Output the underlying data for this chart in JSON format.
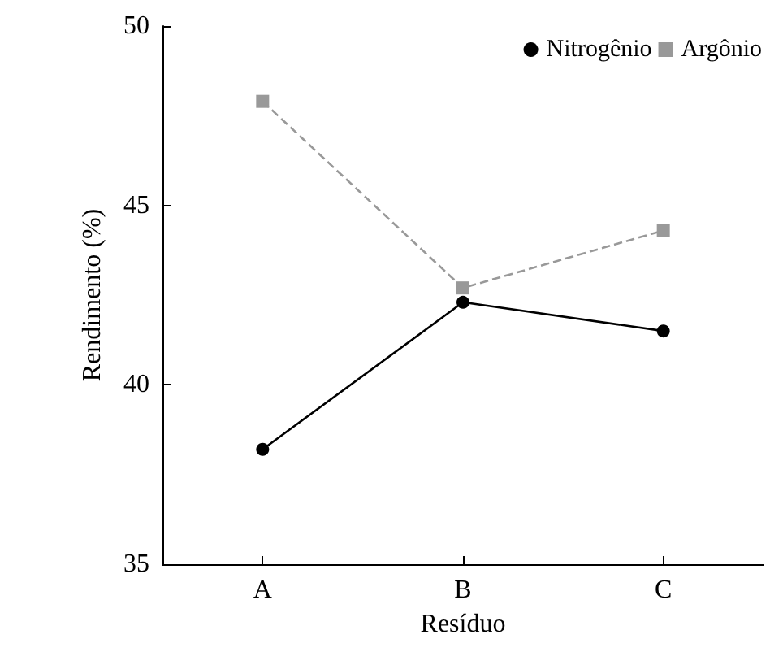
{
  "chart_data": {
    "type": "line",
    "xlabel": "Resíduo",
    "ylabel": "Rendimento (%)",
    "categories": [
      "A",
      "B",
      "C"
    ],
    "series": [
      {
        "name": "Nitrogênio",
        "color": "#000000",
        "values": [
          38.2,
          42.3,
          41.5
        ],
        "marker": "circle",
        "line_style": "solid"
      },
      {
        "name": "Argônio",
        "color": "#999999",
        "values": [
          47.9,
          42.7,
          44.3
        ],
        "marker": "square",
        "line_style": "dashed"
      }
    ],
    "ylim": [
      35,
      50
    ],
    "yticks": [
      35,
      40,
      45,
      50
    ],
    "grid": false,
    "legend": "top right"
  }
}
